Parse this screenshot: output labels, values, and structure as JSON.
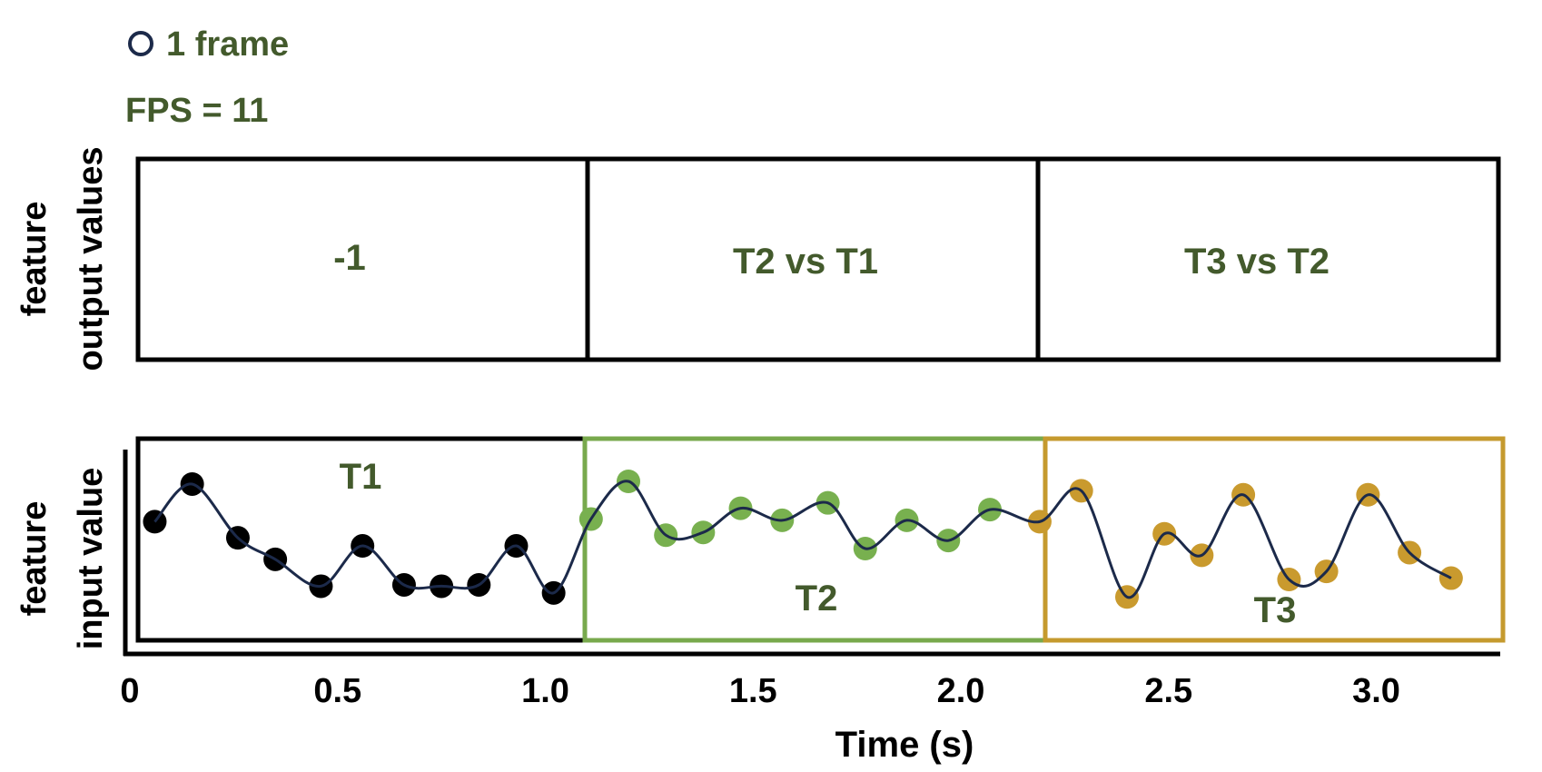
{
  "legend": {
    "marker_label": "1 frame",
    "fps_label": "FPS = 11"
  },
  "output_panel": {
    "ylabel_line1": "feature",
    "ylabel_line2": "output values",
    "cells": [
      "-1",
      "T2 vs T1",
      "T3 vs T2"
    ]
  },
  "input_panel": {
    "ylabel_line1": "feature",
    "ylabel_line2": "input value",
    "segments": [
      {
        "label": "T1",
        "color": "#000000",
        "x0": 0.0,
        "x1": 1.0
      },
      {
        "label": "T2",
        "color": "#78a94d",
        "x0": 1.0,
        "x1": 2.0
      },
      {
        "label": "T3",
        "color": "#c59a2e",
        "x0": 2.0,
        "x1": 3.0
      }
    ]
  },
  "axis": {
    "xlabel": "Time (s)",
    "ticks": [
      {
        "value": 0,
        "label": "0"
      },
      {
        "value": 0.5,
        "label": "0.5"
      },
      {
        "value": 1.0,
        "label": "1.0"
      },
      {
        "value": 1.5,
        "label": "1.5"
      },
      {
        "value": 2.0,
        "label": "2.0"
      },
      {
        "value": 2.5,
        "label": "2.5"
      },
      {
        "value": 3.0,
        "label": "3.0"
      }
    ]
  },
  "colors": {
    "text_green": "#435a2c",
    "curve": "#1c2a4a",
    "t1_points": "#000000",
    "t2_points": "#78b04f",
    "t3_points": "#c99a2e"
  },
  "points": [
    {
      "t": 0.06,
      "v": 0.7,
      "seg": 0
    },
    {
      "t": 0.15,
      "v": 0.98,
      "seg": 0
    },
    {
      "t": 0.26,
      "v": 0.58,
      "seg": 0
    },
    {
      "t": 0.35,
      "v": 0.42,
      "seg": 0
    },
    {
      "t": 0.46,
      "v": 0.22,
      "seg": 0
    },
    {
      "t": 0.56,
      "v": 0.52,
      "seg": 0
    },
    {
      "t": 0.66,
      "v": 0.23,
      "seg": 0
    },
    {
      "t": 0.75,
      "v": 0.22,
      "seg": 0
    },
    {
      "t": 0.84,
      "v": 0.23,
      "seg": 0
    },
    {
      "t": 0.93,
      "v": 0.52,
      "seg": 0
    },
    {
      "t": 1.02,
      "v": 0.17,
      "seg": 0
    },
    {
      "t": 1.11,
      "v": 0.72,
      "seg": 1
    },
    {
      "t": 1.2,
      "v": 1.0,
      "seg": 1
    },
    {
      "t": 1.29,
      "v": 0.6,
      "seg": 1
    },
    {
      "t": 1.38,
      "v": 0.62,
      "seg": 1
    },
    {
      "t": 1.47,
      "v": 0.8,
      "seg": 1
    },
    {
      "t": 1.57,
      "v": 0.71,
      "seg": 1
    },
    {
      "t": 1.68,
      "v": 0.84,
      "seg": 1
    },
    {
      "t": 1.77,
      "v": 0.5,
      "seg": 1
    },
    {
      "t": 1.87,
      "v": 0.71,
      "seg": 1
    },
    {
      "t": 1.97,
      "v": 0.56,
      "seg": 1
    },
    {
      "t": 2.07,
      "v": 0.79,
      "seg": 1
    },
    {
      "t": 2.19,
      "v": 0.7,
      "seg": 2
    },
    {
      "t": 2.29,
      "v": 0.93,
      "seg": 2
    },
    {
      "t": 2.4,
      "v": 0.14,
      "seg": 2
    },
    {
      "t": 2.49,
      "v": 0.61,
      "seg": 2
    },
    {
      "t": 2.58,
      "v": 0.45,
      "seg": 2
    },
    {
      "t": 2.68,
      "v": 0.9,
      "seg": 2
    },
    {
      "t": 2.79,
      "v": 0.27,
      "seg": 2
    },
    {
      "t": 2.88,
      "v": 0.33,
      "seg": 2
    },
    {
      "t": 2.98,
      "v": 0.9,
      "seg": 2
    },
    {
      "t": 3.08,
      "v": 0.47,
      "seg": 2
    },
    {
      "t": 3.18,
      "v": 0.28,
      "seg": 2
    }
  ]
}
